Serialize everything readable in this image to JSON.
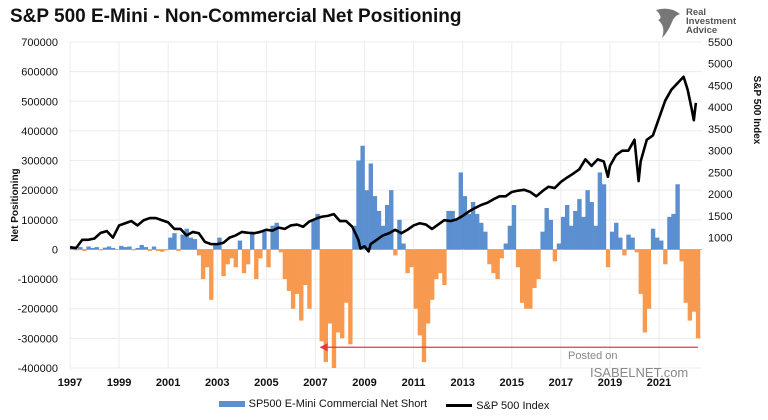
{
  "title": "S&P 500 E-Mini - Non-Commercial Net Positioning",
  "logo": {
    "line1": "Real",
    "line2": "Investment",
    "line3": "Advice"
  },
  "watermark": {
    "line1": "Posted on",
    "line2": "ISABELNET.com"
  },
  "colors": {
    "net_positive": "#5b8fcf",
    "net_negative": "#f79a50",
    "index": "#000000",
    "arrow": "#e8393a"
  },
  "chart_data": {
    "type": "bar+line",
    "title": "S&P 500 E-Mini - Non-Commercial Net Positioning",
    "ylabel": "Net Positioning",
    "y2label": "S&P 500 Index",
    "ylim": [
      -400000,
      700000
    ],
    "y2lim": [
      -2000,
      5500
    ],
    "xlim": [
      "1997-01",
      "2022-10"
    ],
    "yticks": [
      "700000",
      "600000",
      "500000",
      "400000",
      "300000",
      "200000",
      "100000",
      "0",
      "-100000",
      "-200000",
      "-300000",
      "-400000"
    ],
    "y2ticks": [
      "5500",
      "5000",
      "4500",
      "4000",
      "3500",
      "3000",
      "2500",
      "2000",
      "1500",
      "1000"
    ],
    "xticks": [
      "1997",
      "1999",
      "2001",
      "2003",
      "2005",
      "2007",
      "2009",
      "2011",
      "2013",
      "2015",
      "2017",
      "2019",
      "2021"
    ],
    "grid": true,
    "legend_position": "bottom",
    "annotation": {
      "type": "arrow",
      "from": "2022-08",
      "to": "2007-03",
      "value": -330000
    },
    "series": [
      {
        "name": "SP500 E-Mini Commercial Net Short",
        "type": "bar",
        "axis": "left",
        "x_start": "1997-01",
        "x_step_months": 2,
        "values": [
          5000,
          -3000,
          8000,
          -5000,
          10000,
          5000,
          8000,
          -3000,
          6000,
          10000,
          5000,
          -2000,
          12000,
          8000,
          10000,
          -3000,
          5000,
          15000,
          8000,
          -5000,
          10000,
          -5000,
          -8000,
          -3000,
          40000,
          55000,
          -5000,
          50000,
          70000,
          40000,
          35000,
          -20000,
          -100000,
          -60000,
          -170000,
          20000,
          40000,
          -90000,
          -50000,
          -30000,
          -60000,
          30000,
          -80000,
          -50000,
          60000,
          -100000,
          -30000,
          60000,
          -60000,
          80000,
          90000,
          -10000,
          -100000,
          -140000,
          -200000,
          -150000,
          -240000,
          -120000,
          -200000,
          100000,
          120000,
          -310000,
          -380000,
          -250000,
          -400000,
          -280000,
          -300000,
          -180000,
          -320000,
          80000,
          300000,
          350000,
          200000,
          290000,
          180000,
          130000,
          80000,
          150000,
          200000,
          -20000,
          100000,
          20000,
          -80000,
          -60000,
          -200000,
          -290000,
          -380000,
          -250000,
          -170000,
          -100000,
          -80000,
          -120000,
          130000,
          130000,
          100000,
          260000,
          180000,
          120000,
          160000,
          120000,
          90000,
          60000,
          -50000,
          -80000,
          -100000,
          -30000,
          20000,
          80000,
          150000,
          -60000,
          -180000,
          -200000,
          -200000,
          -130000,
          -100000,
          60000,
          140000,
          100000,
          -40000,
          20000,
          110000,
          150000,
          80000,
          130000,
          170000,
          110000,
          200000,
          160000,
          80000,
          260000,
          220000,
          -60000,
          60000,
          90000,
          40000,
          -20000,
          50000,
          40000,
          -10000,
          -150000,
          -280000,
          -200000,
          70000,
          40000,
          30000,
          -50000,
          110000,
          120000,
          220000,
          -40000,
          -180000,
          -240000,
          -210000,
          -300000
        ]
      },
      {
        "name": "S&P 500 Index",
        "type": "line",
        "axis": "right",
        "points": [
          [
            "1997-01",
            780
          ],
          [
            "1997-04",
            760
          ],
          [
            "1997-07",
            950
          ],
          [
            "1997-10",
            950
          ],
          [
            "1998-01",
            980
          ],
          [
            "1998-04",
            1110
          ],
          [
            "1998-07",
            1150
          ],
          [
            "1998-10",
            1000
          ],
          [
            "1999-01",
            1280
          ],
          [
            "1999-04",
            1330
          ],
          [
            "1999-07",
            1380
          ],
          [
            "1999-10",
            1280
          ],
          [
            "2000-01",
            1400
          ],
          [
            "2000-04",
            1450
          ],
          [
            "2000-07",
            1450
          ],
          [
            "2000-10",
            1400
          ],
          [
            "2001-01",
            1350
          ],
          [
            "2001-04",
            1200
          ],
          [
            "2001-07",
            1200
          ],
          [
            "2001-10",
            1050
          ],
          [
            "2002-01",
            1130
          ],
          [
            "2002-04",
            1100
          ],
          [
            "2002-07",
            900
          ],
          [
            "2002-10",
            850
          ],
          [
            "2003-01",
            850
          ],
          [
            "2003-04",
            880
          ],
          [
            "2003-07",
            1000
          ],
          [
            "2003-10",
            1050
          ],
          [
            "2004-01",
            1130
          ],
          [
            "2004-04",
            1110
          ],
          [
            "2004-07",
            1100
          ],
          [
            "2004-10",
            1130
          ],
          [
            "2005-01",
            1180
          ],
          [
            "2005-04",
            1160
          ],
          [
            "2005-07",
            1230
          ],
          [
            "2005-10",
            1200
          ],
          [
            "2006-01",
            1280
          ],
          [
            "2006-04",
            1300
          ],
          [
            "2006-07",
            1250
          ],
          [
            "2006-10",
            1370
          ],
          [
            "2007-01",
            1430
          ],
          [
            "2007-04",
            1480
          ],
          [
            "2007-07",
            1500
          ],
          [
            "2007-10",
            1540
          ],
          [
            "2008-01",
            1380
          ],
          [
            "2008-04",
            1380
          ],
          [
            "2008-07",
            1250
          ],
          [
            "2008-10",
            950
          ],
          [
            "2008-11",
            750
          ],
          [
            "2009-01",
            800
          ],
          [
            "2009-03",
            680
          ],
          [
            "2009-04",
            850
          ],
          [
            "2009-07",
            950
          ],
          [
            "2009-10",
            1050
          ],
          [
            "2010-01",
            1100
          ],
          [
            "2010-04",
            1180
          ],
          [
            "2010-07",
            1100
          ],
          [
            "2010-10",
            1180
          ],
          [
            "2011-01",
            1280
          ],
          [
            "2011-04",
            1330
          ],
          [
            "2011-07",
            1300
          ],
          [
            "2011-10",
            1200
          ],
          [
            "2012-01",
            1300
          ],
          [
            "2012-04",
            1400
          ],
          [
            "2012-07",
            1380
          ],
          [
            "2012-10",
            1420
          ],
          [
            "2013-01",
            1500
          ],
          [
            "2013-04",
            1600
          ],
          [
            "2013-07",
            1680
          ],
          [
            "2013-10",
            1750
          ],
          [
            "2014-01",
            1800
          ],
          [
            "2014-04",
            1880
          ],
          [
            "2014-07",
            1950
          ],
          [
            "2014-10",
            1950
          ],
          [
            "2015-01",
            2050
          ],
          [
            "2015-04",
            2080
          ],
          [
            "2015-07",
            2100
          ],
          [
            "2015-10",
            2050
          ],
          [
            "2016-01",
            1950
          ],
          [
            "2016-04",
            2070
          ],
          [
            "2016-07",
            2170
          ],
          [
            "2016-10",
            2140
          ],
          [
            "2017-01",
            2280
          ],
          [
            "2017-04",
            2380
          ],
          [
            "2017-07",
            2470
          ],
          [
            "2017-10",
            2570
          ],
          [
            "2018-01",
            2800
          ],
          [
            "2018-04",
            2650
          ],
          [
            "2018-07",
            2800
          ],
          [
            "2018-10",
            2750
          ],
          [
            "2018-12",
            2400
          ],
          [
            "2019-01",
            2650
          ],
          [
            "2019-04",
            2900
          ],
          [
            "2019-07",
            3000
          ],
          [
            "2019-10",
            3000
          ],
          [
            "2020-01",
            3250
          ],
          [
            "2020-03",
            2300
          ],
          [
            "2020-04",
            2750
          ],
          [
            "2020-07",
            3250
          ],
          [
            "2020-10",
            3350
          ],
          [
            "2021-01",
            3750
          ],
          [
            "2021-04",
            4150
          ],
          [
            "2021-07",
            4400
          ],
          [
            "2021-10",
            4550
          ],
          [
            "2022-01",
            4700
          ],
          [
            "2022-03",
            4400
          ],
          [
            "2022-05",
            3950
          ],
          [
            "2022-06",
            3700
          ],
          [
            "2022-07",
            4100
          ]
        ]
      }
    ]
  }
}
